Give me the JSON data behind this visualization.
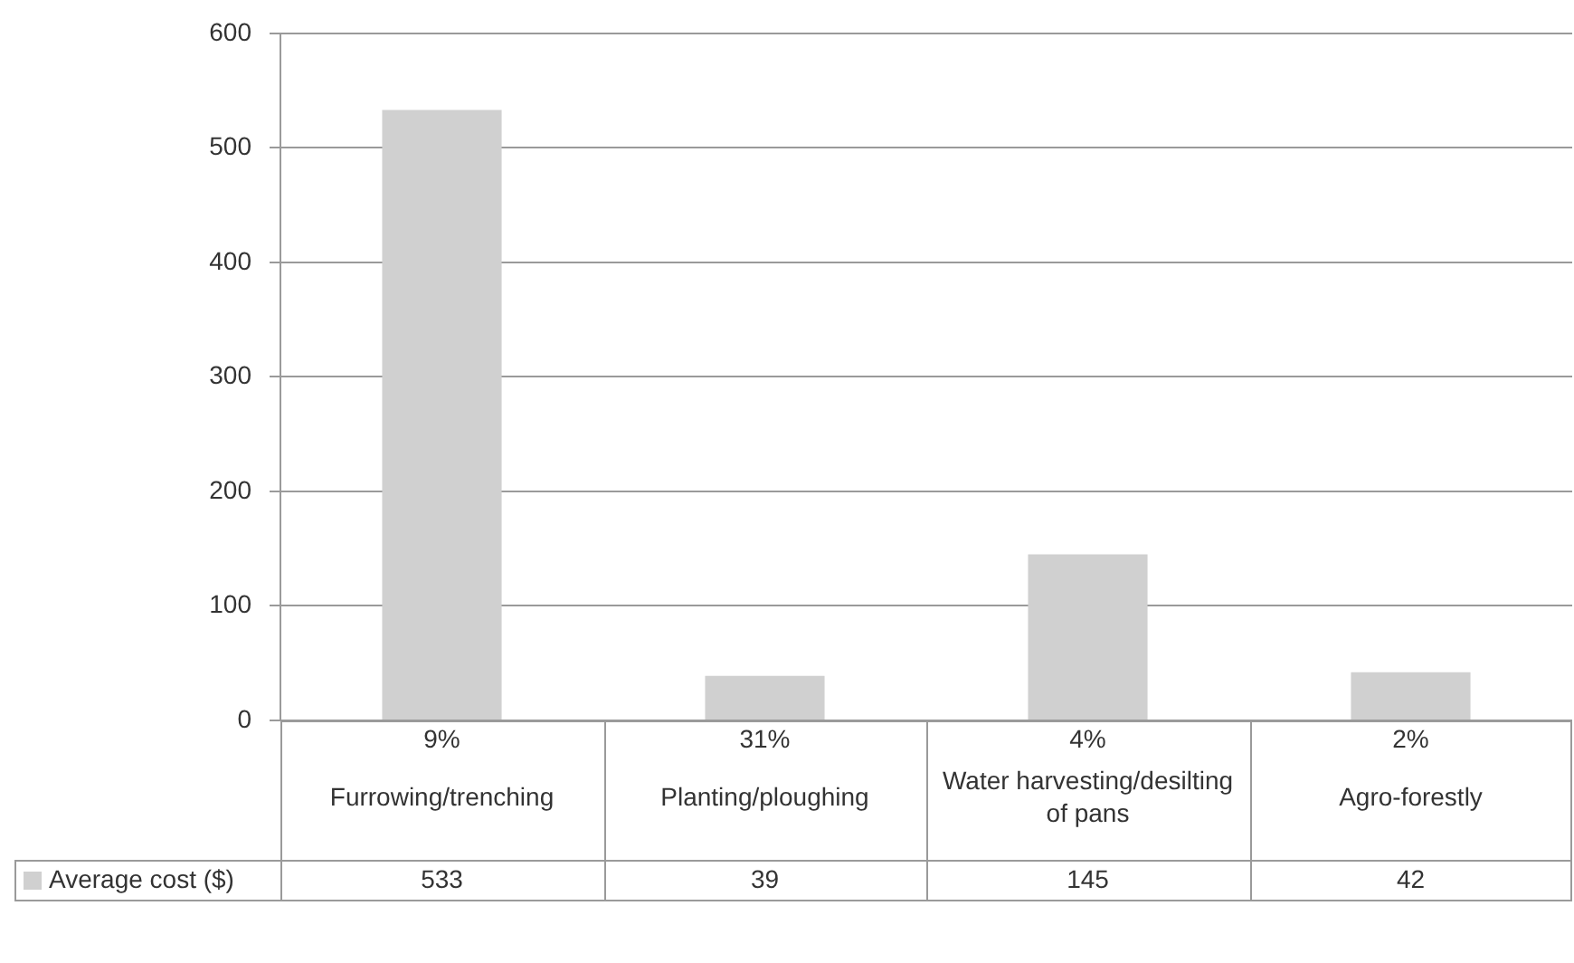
{
  "chart_data": {
    "type": "bar",
    "categories": [
      "Furrowing/trenching",
      "Planting/ploughing",
      "Water harvesting/desilting of pans",
      "Agro-forestly"
    ],
    "series": [
      {
        "name": "Average cost ($)",
        "color": "#d0d0d0",
        "values": [
          533,
          39,
          145,
          42
        ]
      }
    ],
    "data_labels": true,
    "legend": "bottom",
    "grid": "y",
    "ylim": [
      0,
      600
    ],
    "yticks": [
      0,
      100,
      200,
      300,
      400,
      500,
      600
    ],
    "annotations": [
      "9%",
      "31%",
      "4%",
      "2%"
    ]
  }
}
